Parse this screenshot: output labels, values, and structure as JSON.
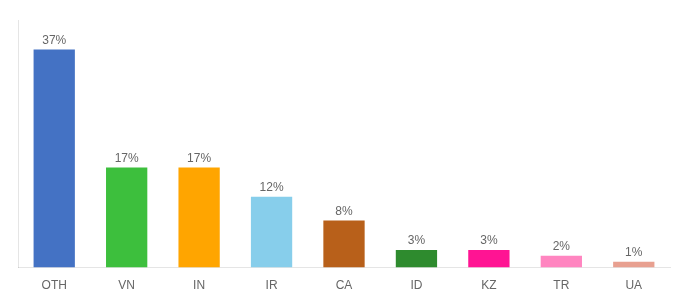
{
  "chart_data": {
    "type": "bar",
    "categories": [
      "OTH",
      "VN",
      "IN",
      "IR",
      "CA",
      "ID",
      "KZ",
      "TR",
      "UA"
    ],
    "values": [
      37,
      17,
      17,
      12,
      8,
      3,
      3,
      2,
      1
    ],
    "value_labels": [
      "37%",
      "17%",
      "17%",
      "12%",
      "8%",
      "3%",
      "3%",
      "2%",
      "1%"
    ],
    "colors": [
      "#4472C4",
      "#3DBF3D",
      "#FFA500",
      "#87CEEB",
      "#B8601A",
      "#2E8B2E",
      "#FF1493",
      "#FF85C0",
      "#E8A090"
    ],
    "ylim": [
      0,
      42
    ],
    "grid": false,
    "data_labels": true,
    "tick_labels": "x"
  }
}
